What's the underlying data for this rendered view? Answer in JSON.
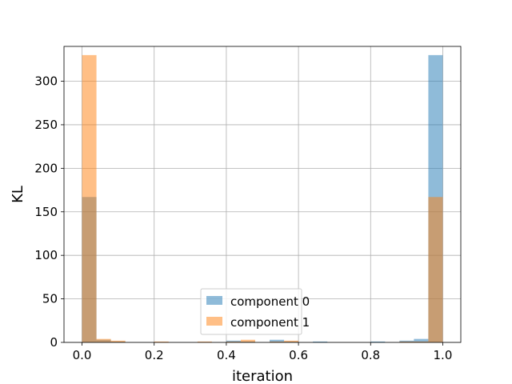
{
  "chart_data": {
    "type": "bar",
    "subtype": "histogram-overlay",
    "title": "",
    "xlabel": "iteration",
    "ylabel": "KL",
    "xlim": [
      -0.05,
      1.05
    ],
    "ylim": [
      0,
      340
    ],
    "xticks": [
      "0.0",
      "0.2",
      "0.4",
      "0.6",
      "0.8",
      "1.0"
    ],
    "yticks": [
      "0",
      "50",
      "100",
      "150",
      "200",
      "250",
      "300"
    ],
    "grid": true,
    "legend_position": "lower center",
    "bin_edges": [
      0.0,
      0.04,
      0.08,
      0.12,
      0.16,
      0.2,
      0.24,
      0.28,
      0.32,
      0.36,
      0.4,
      0.44,
      0.48,
      0.52,
      0.56,
      0.6,
      0.64,
      0.68,
      0.72,
      0.76,
      0.8,
      0.84,
      0.88,
      0.92,
      0.96,
      1.0
    ],
    "series": [
      {
        "name": "component 0",
        "color": "#1f77b4",
        "values": [
          167,
          3,
          1,
          0,
          0,
          0,
          0,
          0,
          0,
          0,
          2,
          1,
          0,
          3,
          1,
          0,
          1,
          0,
          0,
          0,
          1,
          0,
          2,
          4,
          330
        ]
      },
      {
        "name": "component 1",
        "color": "#ff7f0e",
        "values": [
          330,
          4,
          2,
          0,
          0,
          1,
          0,
          0,
          1,
          0,
          1,
          3,
          0,
          1,
          2,
          0,
          0,
          0,
          0,
          0,
          0,
          0,
          1,
          1,
          167
        ]
      }
    ]
  }
}
